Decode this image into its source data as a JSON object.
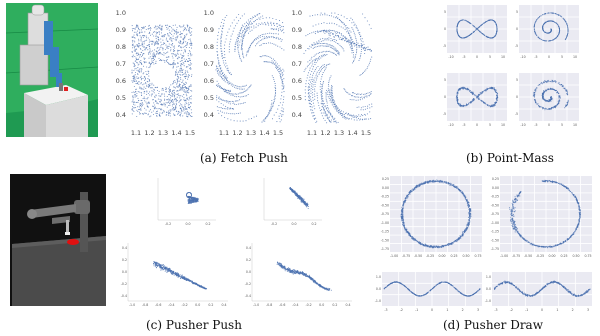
{
  "captions": {
    "fetch_push": "(a) Fetch Push",
    "point_mass": "(b) Point-Mass",
    "pusher_push": "(c) Pusher Push",
    "pusher_draw": "(d) Pusher Draw"
  },
  "colors": {
    "points": "#4c72b0",
    "panel_bg": "#eaeaf2",
    "robot_blue": "#3a7fc4",
    "table_gray": "#d8d8d8",
    "floor_green": "#1f9a52",
    "pusher_bg": "#111111",
    "goal_red": "#e01010"
  },
  "fetch": {
    "x_ticks": [
      "1.1",
      "1.2",
      "1.3",
      "1.4",
      "1.5"
    ],
    "y_ticks": [
      "1.0",
      "0.9",
      "0.8",
      "0.7",
      "0.6",
      "0.5",
      "0.4"
    ]
  },
  "pointmass": {
    "x_ticks": [
      "-10",
      "-5",
      "0",
      "5",
      "10"
    ],
    "y_ticks": [
      "5",
      "0",
      "-5"
    ]
  },
  "pusher_push": {
    "x_ticks_small": [
      "-0.2",
      "0.0",
      "0.2"
    ],
    "x_ticks_large": [
      "-1.0",
      "-0.8",
      "-0.6",
      "-0.4",
      "-0.2",
      "0.0",
      "0.2",
      "0.4"
    ],
    "y_ticks_large": [
      "0.4",
      "0.2",
      "0.0",
      "-0.2",
      "-0.4"
    ]
  },
  "pusher_draw": {
    "x_ticks_circle": [
      "-1.00",
      "-0.75",
      "-0.50",
      "-0.25",
      "0.00",
      "0.25",
      "0.50",
      "0.75"
    ],
    "y_ticks_circle": [
      "0.25",
      "0.00",
      "-0.25",
      "-0.50",
      "-0.75",
      "-1.00",
      "-1.25",
      "-1.50",
      "-1.75"
    ],
    "x_ticks_wave": [
      "-3",
      "-2",
      "-1",
      "0",
      "1",
      "2",
      "3"
    ],
    "y_ticks_wave": [
      "1.0",
      "0.0",
      "-1.0"
    ]
  },
  "chart_data": [
    {
      "type": "scatter",
      "name": "fetch-push-uniform",
      "x": [
        1.15,
        1.45
      ],
      "y": [
        0.4,
        1.0
      ],
      "xlim": [
        1.05,
        1.55
      ],
      "ylim": [
        0.35,
        1.05
      ],
      "hole_center": [
        1.3,
        0.7
      ],
      "hole_radius": 0.07
    },
    {
      "type": "scatter",
      "name": "point-mass-figure-eight",
      "xlim": [
        -10,
        10
      ],
      "ylim": [
        -7,
        7
      ]
    },
    {
      "type": "scatter",
      "name": "point-mass-spiral",
      "xlim": [
        -10,
        10
      ],
      "ylim": [
        -10,
        10
      ]
    },
    {
      "type": "scatter",
      "name": "pusher-draw-circle",
      "xlim": [
        -1.1,
        0.8
      ],
      "ylim": [
        -1.8,
        0.35
      ],
      "center": [
        -0.12,
        -0.7
      ],
      "radius": 0.82
    },
    {
      "type": "line",
      "name": "pusher-draw-sine",
      "xlim": [
        -3.3,
        3.3
      ],
      "ylim": [
        -1.2,
        1.2
      ]
    }
  ]
}
